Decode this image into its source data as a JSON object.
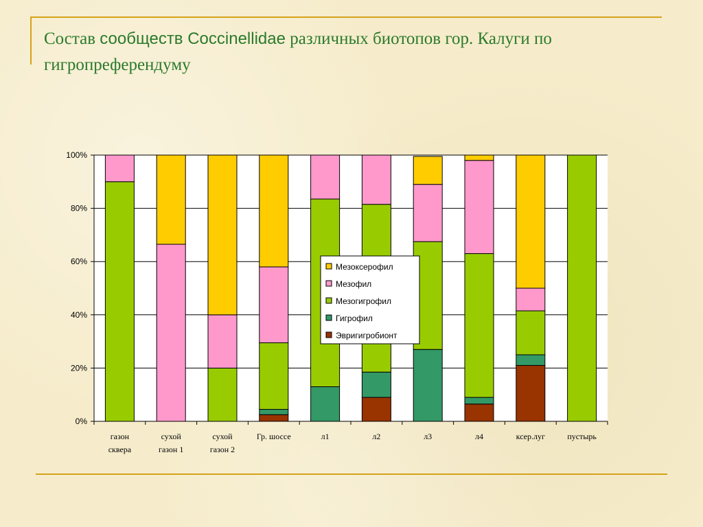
{
  "title": {
    "part1": "Состав ",
    "part2": "сообществ Coccinellidae",
    "part3": " различных биотопов гор. Калуги по гигропреферендуму"
  },
  "chart_data": {
    "type": "bar",
    "stacked": "percent",
    "categories": [
      [
        "газон",
        "сквера"
      ],
      [
        "сухой",
        "газон 1"
      ],
      [
        "сухой",
        "газон 2"
      ],
      [
        "Гр. шоссе"
      ],
      [
        "л1"
      ],
      [
        "л2"
      ],
      [
        "л3"
      ],
      [
        "л4"
      ],
      [
        "ксер.луг"
      ],
      [
        "пустырь"
      ]
    ],
    "ylim": [
      0,
      100
    ],
    "yticks": [
      "0%",
      "20%",
      "40%",
      "60%",
      "80%",
      "100%"
    ],
    "grid": true,
    "legend_position": "center",
    "series": [
      {
        "name": "Эвригигробионт",
        "color": "#993300",
        "values": [
          0,
          0,
          0,
          2.5,
          0,
          9,
          0,
          6.5,
          21,
          0
        ]
      },
      {
        "name": "Гигрофил",
        "color": "#339966",
        "values": [
          0,
          0,
          0,
          2,
          13,
          9.5,
          27,
          2.5,
          4,
          0
        ]
      },
      {
        "name": "Мезогигрофил",
        "color": "#99cc00",
        "values": [
          90,
          0,
          20,
          25,
          70.5,
          63,
          40.5,
          54,
          16.5,
          100
        ]
      },
      {
        "name": "Мезофил",
        "color": "#ff99cc",
        "values": [
          10,
          66.5,
          20,
          28.5,
          16.5,
          18.5,
          21.5,
          35,
          8.5,
          0
        ]
      },
      {
        "name": "Мезоксерофил",
        "color": "#ffcc00",
        "values": [
          0,
          33.5,
          60,
          42,
          0,
          0,
          10.5,
          2,
          50,
          0
        ]
      }
    ],
    "legend_order": [
      "Мезоксерофил",
      "Мезофил",
      "Мезогигрофил",
      "Гигрофил",
      "Эвригигробионт"
    ]
  }
}
